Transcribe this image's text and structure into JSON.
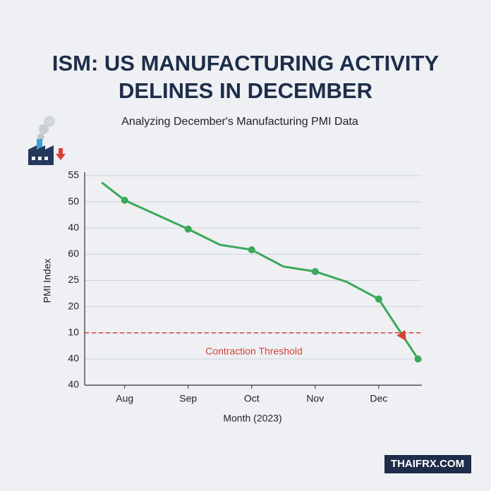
{
  "title": [
    "ISM: US MANUFACTURING ACTIVITY",
    "DELINES IN DECEMBER"
  ],
  "subtitle": "Analyzing December's Manufacturing PMI Data",
  "watermark": "THAIFRX.COM",
  "chart_data": {
    "type": "line",
    "ylabel": "PMI Index",
    "xlabel": "Month (2023)",
    "x": [
      -0.36,
      0,
      1,
      1.5,
      2,
      2.5,
      3,
      3.5,
      4,
      4.62
    ],
    "series": [
      {
        "color": "#3aa85a",
        "values": [
          7.74,
          7.06,
          5.96,
          5.36,
          5.17,
          4.53,
          4.34,
          3.94,
          3.29,
          1.0
        ]
      }
    ],
    "xlim": [
      -0.63,
      4.68
    ],
    "xticks": [
      {
        "value": 0,
        "label": "Aug"
      },
      {
        "value": 1,
        "label": "Sep"
      },
      {
        "value": 2,
        "label": "Oct"
      },
      {
        "value": 3,
        "label": "Nov"
      },
      {
        "value": 4,
        "label": "Dec"
      }
    ],
    "ylim": [
      0,
      8
    ],
    "yticks": [
      {
        "value": 8,
        "label": "55"
      },
      {
        "value": 7,
        "label": "50"
      },
      {
        "value": 6,
        "label": "40"
      },
      {
        "value": 5,
        "label": "60"
      },
      {
        "value": 4,
        "label": "25"
      },
      {
        "value": 3,
        "label": "20"
      },
      {
        "value": 2,
        "label": "10"
      },
      {
        "value": 1,
        "label": "40"
      },
      {
        "value": 0,
        "label": "40"
      }
    ],
    "grid": true,
    "threshold": {
      "value": 2,
      "label": "Contraction Threshold",
      "color": "#d9403a"
    }
  }
}
